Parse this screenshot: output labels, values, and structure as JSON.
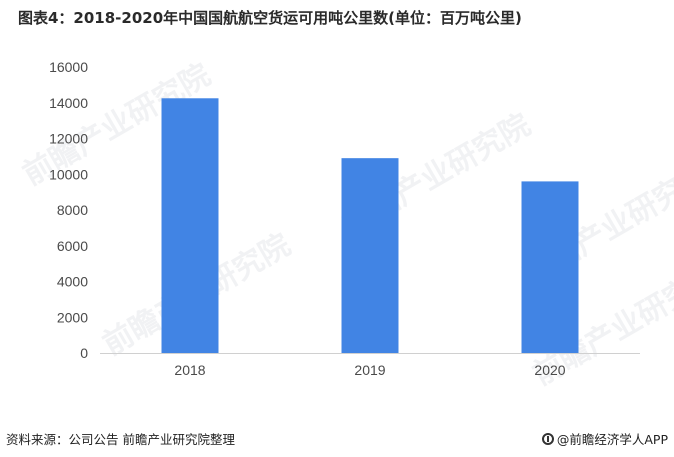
{
  "chart_data": {
    "type": "bar",
    "title": "图表4：2018-2020年中国国航航空货运可用吨公里数(单位：百万吨公里)",
    "categories": [
      "2018",
      "2019",
      "2020"
    ],
    "values": [
      14250,
      10900,
      9600
    ],
    "ylim": [
      0,
      16000
    ],
    "yticks": [
      0,
      2000,
      4000,
      6000,
      8000,
      10000,
      12000,
      14000,
      16000
    ],
    "xlabel": "",
    "ylabel": "",
    "grid": false,
    "bar_color": "#4184e4"
  },
  "footer": {
    "source": "资料来源：公司公告 前瞻产业研究院整理",
    "brand": "@前瞻经济学人APP"
  },
  "watermark": {
    "text": "前瞻产业研究院"
  }
}
